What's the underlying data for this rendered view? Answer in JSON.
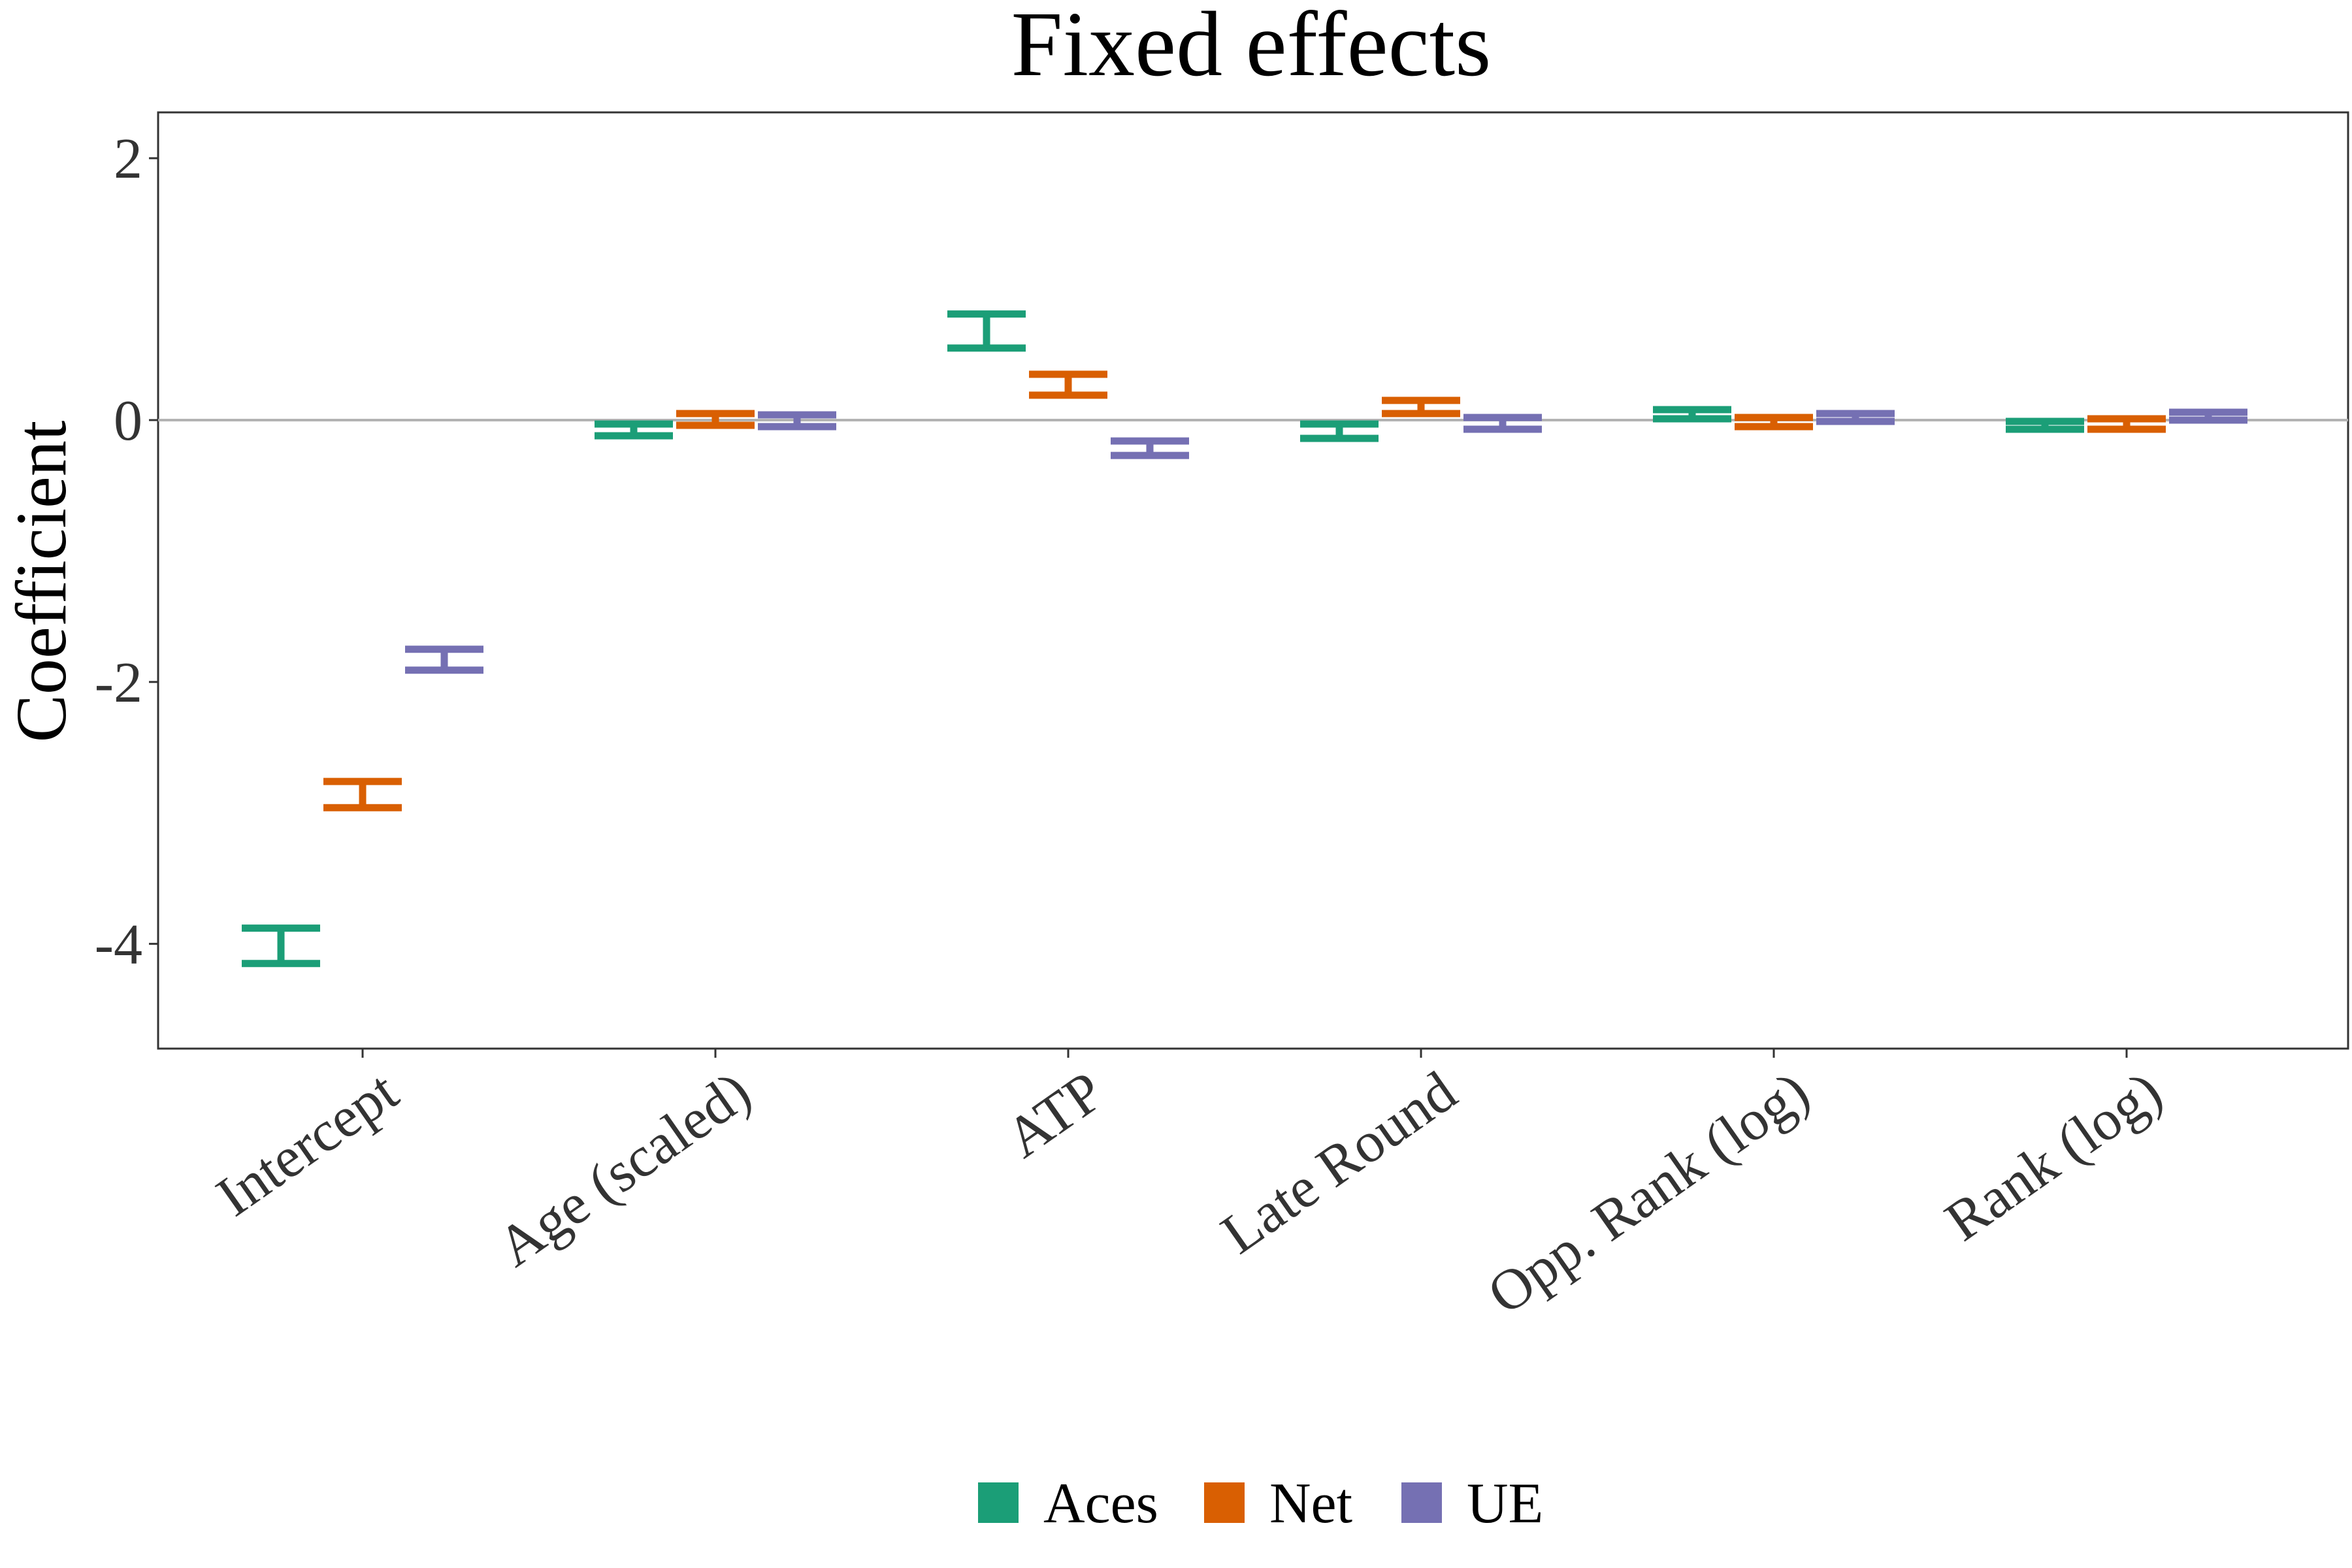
{
  "chart_data": {
    "type": "errorbar",
    "title": "Fixed effects",
    "xlabel": "",
    "ylabel": "Coefficient",
    "ylim": [
      -4.8,
      2.35
    ],
    "yticks": [
      2,
      0,
      -2,
      -4
    ],
    "ytick_labels": [
      "2",
      "0",
      "-2",
      "-4"
    ],
    "categories": [
      "Intercept",
      "Age (scaled)",
      "ATP",
      "Late Round",
      "Opp. Rank (log)",
      "Rank (log)"
    ],
    "reference_line": 0,
    "grid": false,
    "legend": {
      "position": "bottom"
    },
    "series": [
      {
        "name": "Aces",
        "color": "#1b9e77",
        "lower": [
          -4.15,
          -0.12,
          0.55,
          -0.14,
          0.01,
          -0.07
        ],
        "upper": [
          -3.88,
          -0.03,
          0.81,
          -0.03,
          0.08,
          -0.01
        ]
      },
      {
        "name": "Net",
        "color": "#d95f02",
        "lower": [
          -2.96,
          -0.04,
          0.19,
          0.05,
          -0.05,
          -0.07
        ],
        "upper": [
          -2.76,
          0.05,
          0.35,
          0.15,
          0.02,
          0.01
        ]
      },
      {
        "name": "UE",
        "color": "#7570b3",
        "lower": [
          -1.91,
          -0.05,
          -0.27,
          -0.07,
          -0.01,
          0.0
        ],
        "upper": [
          -1.75,
          0.04,
          -0.16,
          0.02,
          0.05,
          0.06
        ]
      }
    ]
  }
}
